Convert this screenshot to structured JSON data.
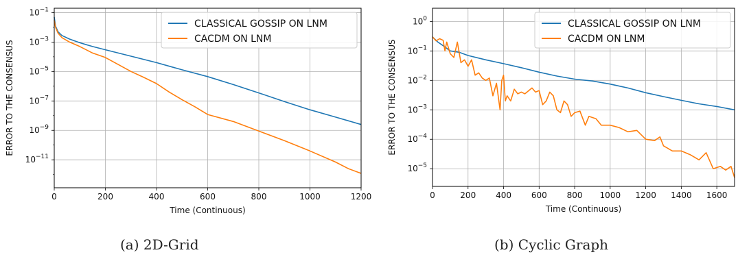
{
  "figure": {
    "captions": [
      "(a) 2D-Grid",
      "(b) Cyclic Graph"
    ]
  },
  "colors": {
    "series1": "#1f77b4",
    "series2": "#ff7f0e",
    "grid": "#b0b0b0"
  },
  "chart_data": [
    {
      "type": "line",
      "title": "",
      "xlabel": "Time (Continuous)",
      "ylabel": "ERROR TO THE CONSENSUS",
      "xlim": [
        0,
        1200
      ],
      "ylim_exp": [
        -12.9,
        -0.7
      ],
      "yscale": "log",
      "grid": true,
      "legend": "top-right",
      "xticks": [
        "0",
        "200",
        "400",
        "600",
        "800",
        "1000",
        "1200"
      ],
      "yticks": [
        "10^-1",
        "10^-3",
        "10^-5",
        "10^-7",
        "10^-9",
        "10^-11"
      ],
      "series": [
        {
          "name": "CLASSICAL GOSSIP ON LNM",
          "points": [
            [
              0,
              0.05
            ],
            [
              5,
              0.012
            ],
            [
              15,
              0.005
            ],
            [
              30,
              0.0028
            ],
            [
              60,
              0.0016
            ],
            [
              100,
              0.0009
            ],
            [
              150,
              0.0005
            ],
            [
              200,
              0.0003
            ],
            [
              300,
              0.00011
            ],
            [
              400,
              4e-05
            ],
            [
              500,
              1.3e-05
            ],
            [
              600,
              4.5e-06
            ],
            [
              700,
              1.3e-06
            ],
            [
              800,
              3.5e-07
            ],
            [
              900,
              9e-08
            ],
            [
              1000,
              2.5e-08
            ],
            [
              1100,
              8e-09
            ],
            [
              1200,
              2.5e-09
            ]
          ]
        },
        {
          "name": "CACDM ON LNM",
          "points": [
            [
              0,
              0.03
            ],
            [
              5,
              0.01
            ],
            [
              15,
              0.004
            ],
            [
              30,
              0.002
            ],
            [
              60,
              0.001
            ],
            [
              100,
              0.0005
            ],
            [
              150,
              0.00018
            ],
            [
              200,
              9e-05
            ],
            [
              250,
              3e-05
            ],
            [
              300,
              1e-05
            ],
            [
              350,
              4e-06
            ],
            [
              400,
              1.5e-06
            ],
            [
              450,
              4e-07
            ],
            [
              500,
              1.2e-07
            ],
            [
              550,
              4e-08
            ],
            [
              600,
              1.2e-08
            ],
            [
              700,
              4e-09
            ],
            [
              800,
              9e-10
            ],
            [
              900,
              2e-10
            ],
            [
              1000,
              4e-11
            ],
            [
              1100,
              7e-12
            ],
            [
              1150,
              2.5e-12
            ],
            [
              1200,
              1.2e-12
            ]
          ]
        }
      ]
    },
    {
      "type": "line",
      "title": "",
      "xlabel": "Time (Continuous)",
      "ylabel": "ERROR TO THE CONSENSUS",
      "xlim": [
        0,
        1700
      ],
      "ylim_exp": [
        -5.6,
        0.45
      ],
      "yscale": "log",
      "grid": true,
      "legend": "top-right",
      "xticks": [
        "0",
        "200",
        "400",
        "600",
        "800",
        "1000",
        "1200",
        "1400",
        "1600"
      ],
      "yticks": [
        "10^0",
        "10^-1",
        "10^-2",
        "10^-3",
        "10^-4",
        "10^-5"
      ],
      "series": [
        {
          "name": "CLASSICAL GOSSIP ON LNM",
          "points": [
            [
              0,
              0.3
            ],
            [
              30,
              0.2
            ],
            [
              60,
              0.15
            ],
            [
              100,
              0.1
            ],
            [
              150,
              0.09
            ],
            [
              200,
              0.07
            ],
            [
              300,
              0.05
            ],
            [
              400,
              0.037
            ],
            [
              500,
              0.027
            ],
            [
              600,
              0.019
            ],
            [
              700,
              0.014
            ],
            [
              800,
              0.011
            ],
            [
              900,
              0.0095
            ],
            [
              1000,
              0.0075
            ],
            [
              1100,
              0.0055
            ],
            [
              1200,
              0.0038
            ],
            [
              1300,
              0.0028
            ],
            [
              1400,
              0.0021
            ],
            [
              1500,
              0.0016
            ],
            [
              1600,
              0.0013
            ],
            [
              1700,
              0.001
            ]
          ]
        },
        {
          "name": "CACDM ON LNM",
          "points": [
            [
              0,
              0.3
            ],
            [
              20,
              0.22
            ],
            [
              40,
              0.26
            ],
            [
              60,
              0.23
            ],
            [
              70,
              0.1
            ],
            [
              80,
              0.2
            ],
            [
              100,
              0.08
            ],
            [
              120,
              0.06
            ],
            [
              140,
              0.2
            ],
            [
              160,
              0.04
            ],
            [
              180,
              0.05
            ],
            [
              200,
              0.03
            ],
            [
              220,
              0.05
            ],
            [
              240,
              0.015
            ],
            [
              260,
              0.018
            ],
            [
              280,
              0.012
            ],
            [
              300,
              0.01
            ],
            [
              320,
              0.012
            ],
            [
              340,
              0.003
            ],
            [
              360,
              0.008
            ],
            [
              380,
              0.001
            ],
            [
              390,
              0.01
            ],
            [
              400,
              0.015
            ],
            [
              410,
              0.002
            ],
            [
              420,
              0.003
            ],
            [
              440,
              0.002
            ],
            [
              460,
              0.005
            ],
            [
              480,
              0.0035
            ],
            [
              500,
              0.004
            ],
            [
              520,
              0.0035
            ],
            [
              560,
              0.0055
            ],
            [
              580,
              0.004
            ],
            [
              600,
              0.0045
            ],
            [
              620,
              0.0015
            ],
            [
              640,
              0.002
            ],
            [
              660,
              0.004
            ],
            [
              680,
              0.003
            ],
            [
              700,
              0.001
            ],
            [
              720,
              0.0008
            ],
            [
              740,
              0.002
            ],
            [
              760,
              0.0015
            ],
            [
              780,
              0.0006
            ],
            [
              800,
              0.0008
            ],
            [
              830,
              0.0009
            ],
            [
              860,
              0.0003
            ],
            [
              880,
              0.0006
            ],
            [
              920,
              0.0005
            ],
            [
              950,
              0.0003
            ],
            [
              1000,
              0.0003
            ],
            [
              1050,
              0.00025
            ],
            [
              1100,
              0.00018
            ],
            [
              1150,
              0.0002
            ],
            [
              1200,
              0.0001
            ],
            [
              1250,
              9e-05
            ],
            [
              1280,
              0.00012
            ],
            [
              1300,
              6e-05
            ],
            [
              1350,
              4e-05
            ],
            [
              1400,
              4e-05
            ],
            [
              1450,
              3e-05
            ],
            [
              1500,
              2e-05
            ],
            [
              1540,
              3.5e-05
            ],
            [
              1580,
              1e-05
            ],
            [
              1620,
              1.2e-05
            ],
            [
              1650,
              9e-06
            ],
            [
              1680,
              1.2e-05
            ],
            [
              1700,
              5e-06
            ]
          ]
        }
      ]
    }
  ]
}
